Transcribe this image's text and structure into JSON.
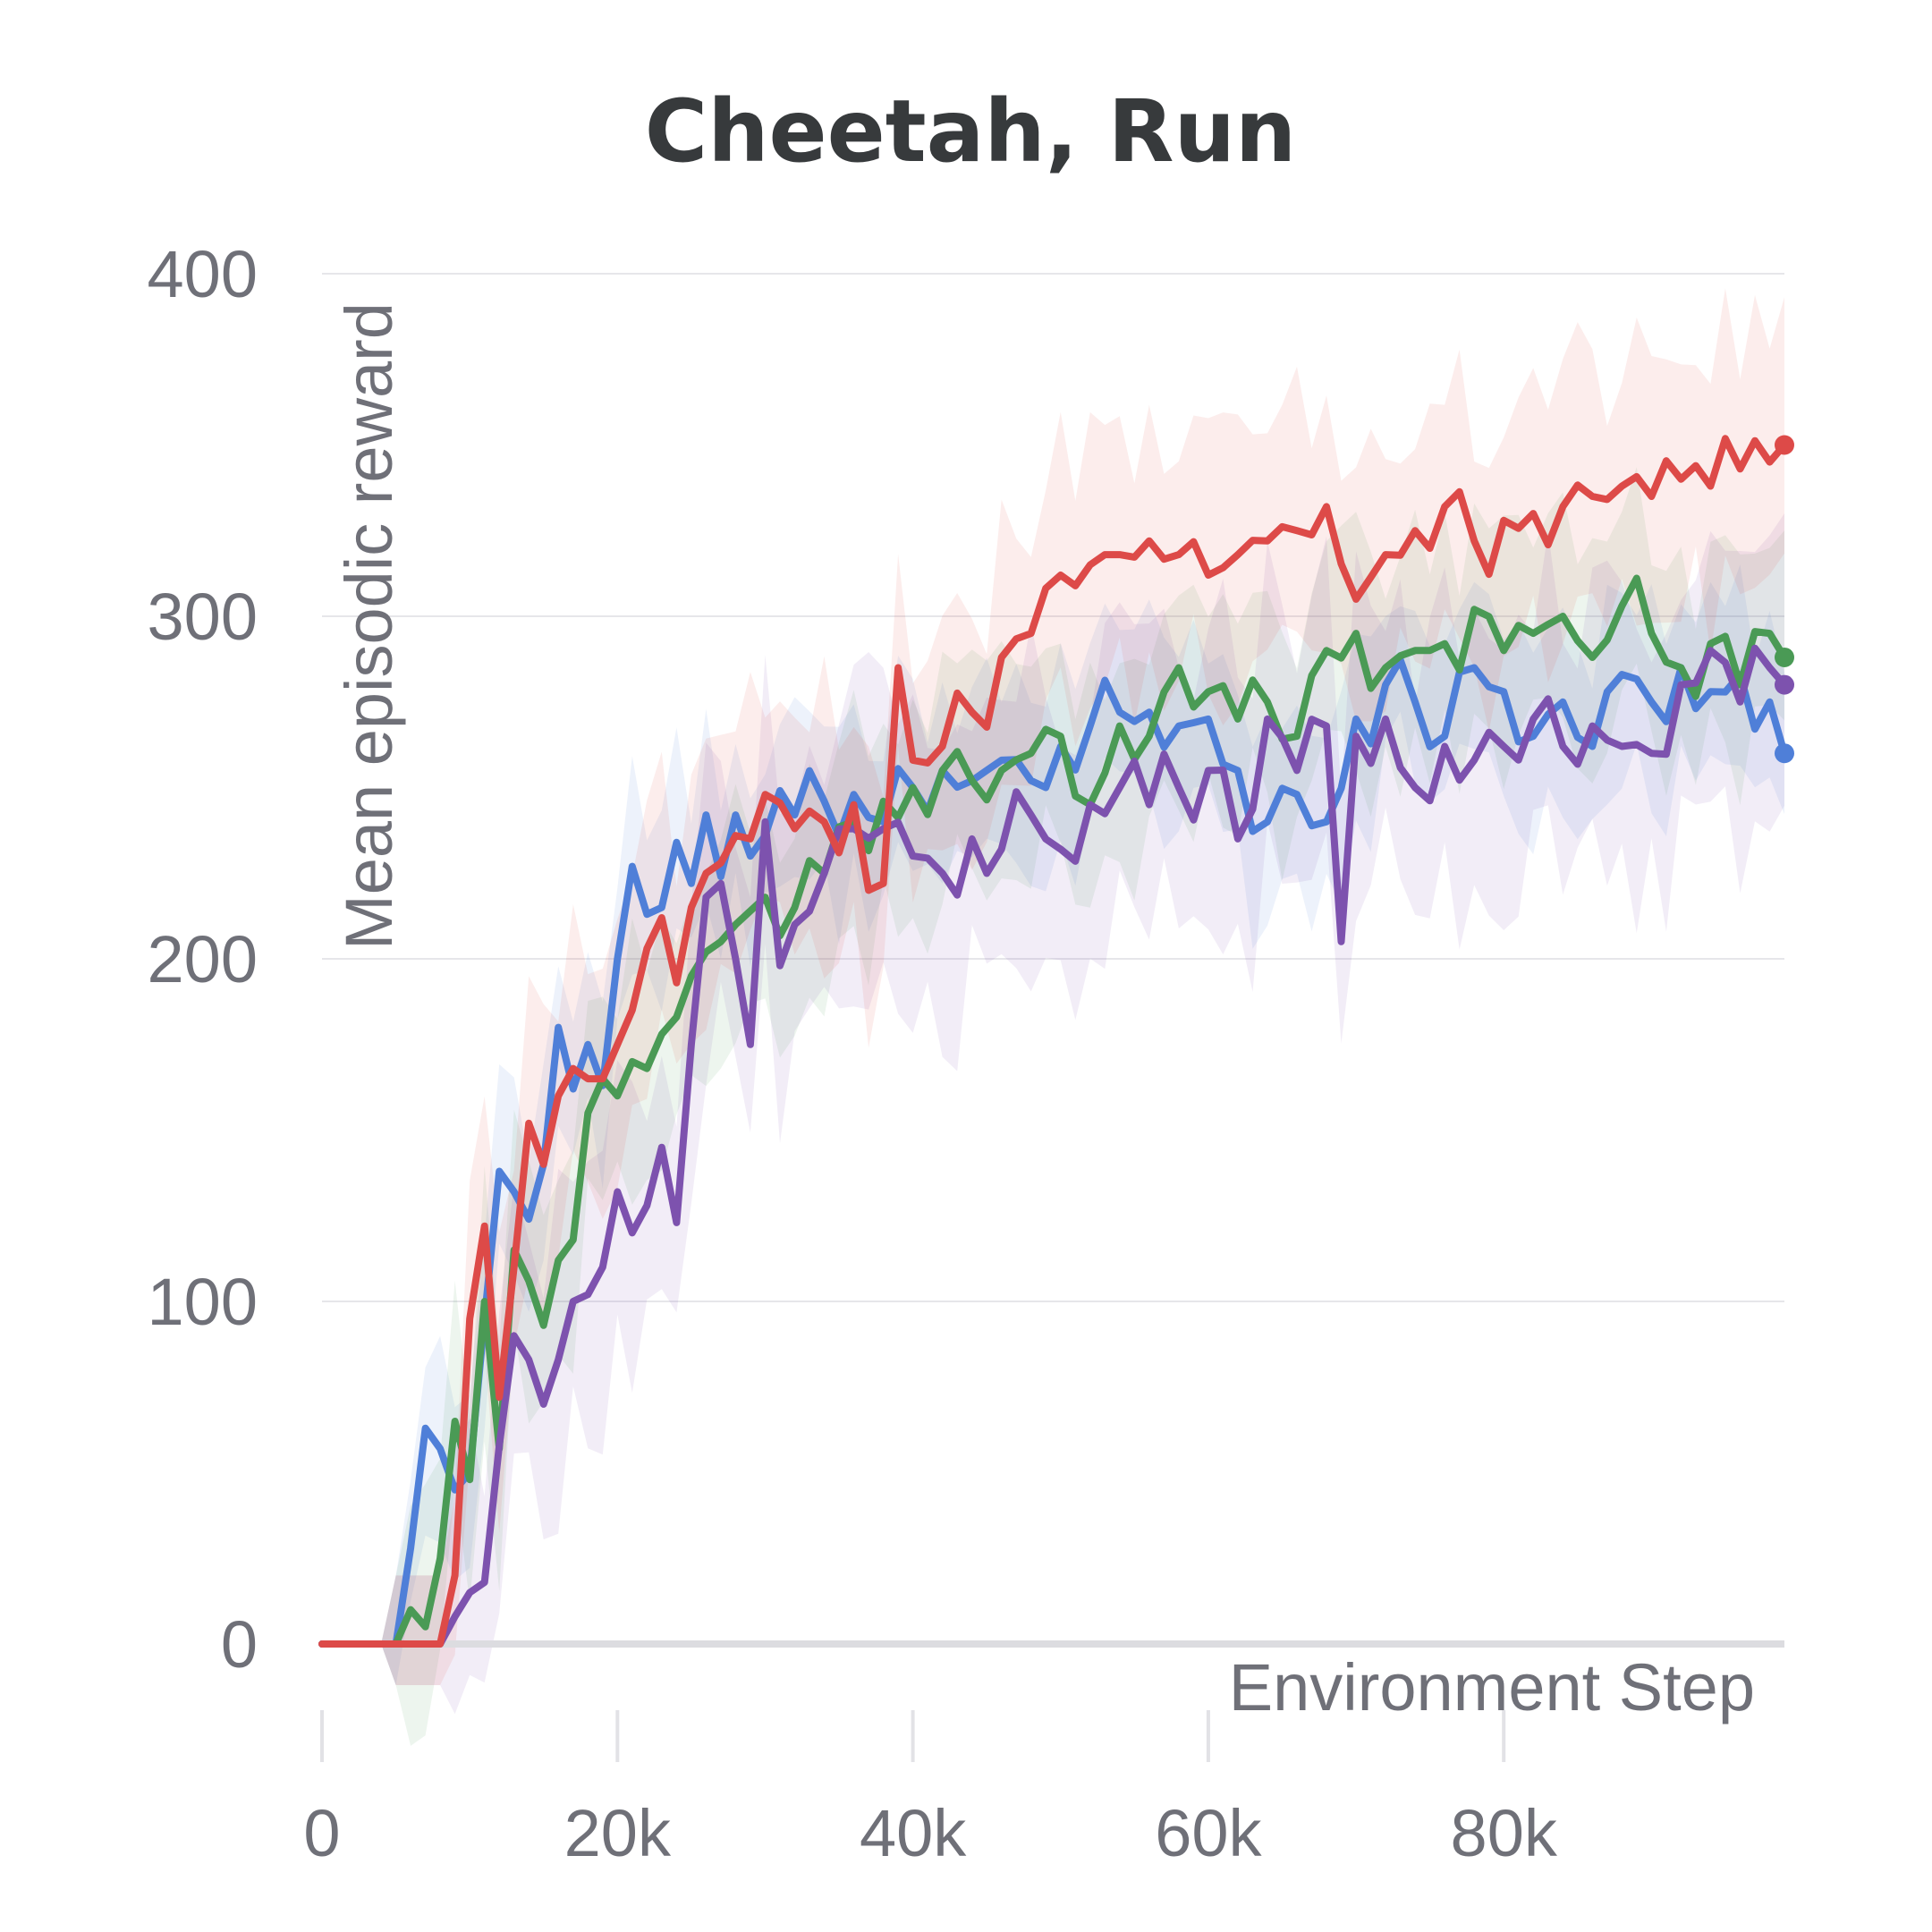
{
  "chart_data": {
    "type": "line",
    "title": "Cheetah, Run",
    "xlabel": "Environment Step",
    "ylabel": "Mean episodic reward",
    "xlim": [
      0,
      99000
    ],
    "ylim": [
      -35,
      420
    ],
    "xticks": [
      0,
      20000,
      40000,
      60000,
      80000
    ],
    "xtick_labels": [
      "0",
      "20k",
      "40k",
      "60k",
      "80k"
    ],
    "yticks": [
      0,
      100,
      200,
      300,
      400
    ],
    "ytick_labels": [
      "0",
      "100",
      "200",
      "300",
      "400"
    ],
    "grid": true,
    "legend": "none",
    "series": [
      {
        "name": "blue",
        "color": "#4f7fd8",
        "anchors": [
          [
            0,
            0
          ],
          [
            5000,
            0
          ],
          [
            6000,
            28
          ],
          [
            7000,
            63
          ],
          [
            8000,
            57
          ],
          [
            9000,
            45
          ],
          [
            10000,
            50
          ],
          [
            11000,
            95
          ],
          [
            12000,
            138
          ],
          [
            13000,
            132
          ],
          [
            14000,
            124
          ],
          [
            15000,
            140
          ],
          [
            16000,
            180
          ],
          [
            17000,
            162
          ],
          [
            18000,
            175
          ],
          [
            19000,
            163
          ],
          [
            20000,
            200
          ],
          [
            21000,
            227
          ],
          [
            22000,
            213
          ],
          [
            23000,
            215
          ],
          [
            24000,
            234
          ],
          [
            25000,
            222
          ],
          [
            26000,
            242
          ],
          [
            27000,
            224
          ],
          [
            28000,
            242
          ],
          [
            29000,
            230
          ],
          [
            30000,
            236
          ],
          [
            32000,
            242
          ],
          [
            34000,
            246
          ],
          [
            36000,
            248
          ],
          [
            38000,
            240
          ],
          [
            40000,
            250
          ],
          [
            42000,
            255
          ],
          [
            44000,
            252
          ],
          [
            46000,
            258
          ],
          [
            48000,
            252
          ],
          [
            50000,
            262
          ],
          [
            52000,
            268
          ],
          [
            54000,
            272
          ],
          [
            56000,
            272
          ],
          [
            58000,
            268
          ],
          [
            60000,
            270
          ],
          [
            62000,
            255
          ],
          [
            64000,
            240
          ],
          [
            66000,
            248
          ],
          [
            68000,
            240
          ],
          [
            70000,
            270
          ],
          [
            72000,
            280
          ],
          [
            74000,
            275
          ],
          [
            76000,
            265
          ],
          [
            78000,
            285
          ],
          [
            80000,
            278
          ],
          [
            82000,
            265
          ],
          [
            84000,
            275
          ],
          [
            86000,
            262
          ],
          [
            88000,
            283
          ],
          [
            90000,
            275
          ],
          [
            92000,
            285
          ],
          [
            94000,
            278
          ],
          [
            96000,
            283
          ],
          [
            98000,
            275
          ],
          [
            99000,
            260
          ]
        ],
        "band": 25
      },
      {
        "name": "green",
        "color": "#4a9a55",
        "anchors": [
          [
            0,
            0
          ],
          [
            5000,
            0
          ],
          [
            6000,
            10
          ],
          [
            7000,
            5
          ],
          [
            8000,
            25
          ],
          [
            9000,
            65
          ],
          [
            10000,
            48
          ],
          [
            11000,
            100
          ],
          [
            12000,
            57
          ],
          [
            13000,
            115
          ],
          [
            14000,
            106
          ],
          [
            15000,
            93
          ],
          [
            16000,
            112
          ],
          [
            17000,
            118
          ],
          [
            18000,
            155
          ],
          [
            19000,
            165
          ],
          [
            20000,
            160
          ],
          [
            21000,
            170
          ],
          [
            22000,
            168
          ],
          [
            23000,
            178
          ],
          [
            24000,
            183
          ],
          [
            25000,
            195
          ],
          [
            26000,
            202
          ],
          [
            27000,
            205
          ],
          [
            28000,
            210
          ],
          [
            30000,
            218
          ],
          [
            32000,
            215
          ],
          [
            34000,
            225
          ],
          [
            36000,
            240
          ],
          [
            38000,
            246
          ],
          [
            40000,
            250
          ],
          [
            42000,
            255
          ],
          [
            44000,
            252
          ],
          [
            46000,
            255
          ],
          [
            48000,
            260
          ],
          [
            50000,
            265
          ],
          [
            52000,
            245
          ],
          [
            54000,
            268
          ],
          [
            56000,
            265
          ],
          [
            58000,
            285
          ],
          [
            60000,
            278
          ],
          [
            62000,
            270
          ],
          [
            64000,
            275
          ],
          [
            66000,
            265
          ],
          [
            68000,
            290
          ],
          [
            70000,
            295
          ],
          [
            72000,
            285
          ],
          [
            74000,
            290
          ],
          [
            76000,
            292
          ],
          [
            78000,
            302
          ],
          [
            80000,
            290
          ],
          [
            82000,
            295
          ],
          [
            84000,
            300
          ],
          [
            86000,
            288
          ],
          [
            88000,
            303
          ],
          [
            90000,
            295
          ],
          [
            92000,
            285
          ],
          [
            94000,
            292
          ],
          [
            96000,
            280
          ],
          [
            98000,
            295
          ],
          [
            99000,
            288
          ]
        ],
        "band": 30
      },
      {
        "name": "purple",
        "color": "#7d52ae",
        "anchors": [
          [
            0,
            0
          ],
          [
            8000,
            0
          ],
          [
            9000,
            8
          ],
          [
            10000,
            15
          ],
          [
            11000,
            18
          ],
          [
            12000,
            58
          ],
          [
            13000,
            90
          ],
          [
            14000,
            83
          ],
          [
            15000,
            70
          ],
          [
            16000,
            83
          ],
          [
            17000,
            100
          ],
          [
            18000,
            102
          ],
          [
            19000,
            110
          ],
          [
            20000,
            132
          ],
          [
            21000,
            120
          ],
          [
            22000,
            128
          ],
          [
            23000,
            145
          ],
          [
            24000,
            123
          ],
          [
            25000,
            175
          ],
          [
            26000,
            218
          ],
          [
            27000,
            222
          ],
          [
            28000,
            200
          ],
          [
            29000,
            175
          ],
          [
            30000,
            240
          ],
          [
            31000,
            198
          ],
          [
            32000,
            210
          ],
          [
            34000,
            225
          ],
          [
            36000,
            238
          ],
          [
            38000,
            238
          ],
          [
            40000,
            230
          ],
          [
            42000,
            225
          ],
          [
            44000,
            235
          ],
          [
            46000,
            232
          ],
          [
            48000,
            242
          ],
          [
            50000,
            232
          ],
          [
            52000,
            245
          ],
          [
            54000,
            250
          ],
          [
            56000,
            245
          ],
          [
            58000,
            250
          ],
          [
            60000,
            255
          ],
          [
            62000,
            235
          ],
          [
            64000,
            270
          ],
          [
            66000,
            255
          ],
          [
            68000,
            268
          ],
          [
            69000,
            205
          ],
          [
            70000,
            265
          ],
          [
            72000,
            270
          ],
          [
            74000,
            250
          ],
          [
            76000,
            262
          ],
          [
            78000,
            258
          ],
          [
            80000,
            262
          ],
          [
            82000,
            270
          ],
          [
            84000,
            262
          ],
          [
            86000,
            268
          ],
          [
            88000,
            262
          ],
          [
            90000,
            260
          ],
          [
            92000,
            280
          ],
          [
            94000,
            290
          ],
          [
            96000,
            275
          ],
          [
            98000,
            285
          ],
          [
            99000,
            280
          ]
        ],
        "band": 40
      },
      {
        "name": "red",
        "color": "#dd4a48",
        "anchors": [
          [
            0,
            0
          ],
          [
            8000,
            0
          ],
          [
            9000,
            20
          ],
          [
            10000,
            95
          ],
          [
            11000,
            122
          ],
          [
            12000,
            72
          ],
          [
            13000,
            110
          ],
          [
            14000,
            152
          ],
          [
            15000,
            140
          ],
          [
            16000,
            160
          ],
          [
            17000,
            168
          ],
          [
            18000,
            165
          ],
          [
            19000,
            165
          ],
          [
            20000,
            175
          ],
          [
            21000,
            185
          ],
          [
            22000,
            203
          ],
          [
            23000,
            212
          ],
          [
            24000,
            193
          ],
          [
            25000,
            215
          ],
          [
            26000,
            225
          ],
          [
            27000,
            228
          ],
          [
            28000,
            236
          ],
          [
            29000,
            235
          ],
          [
            30000,
            248
          ],
          [
            32000,
            238
          ],
          [
            34000,
            240
          ],
          [
            36000,
            245
          ],
          [
            37000,
            220
          ],
          [
            38000,
            222
          ],
          [
            39000,
            285
          ],
          [
            40000,
            258
          ],
          [
            42000,
            262
          ],
          [
            44000,
            272
          ],
          [
            46000,
            288
          ],
          [
            48000,
            295
          ],
          [
            50000,
            312
          ],
          [
            52000,
            315
          ],
          [
            54000,
            318
          ],
          [
            56000,
            322
          ],
          [
            58000,
            318
          ],
          [
            60000,
            312
          ],
          [
            62000,
            318
          ],
          [
            64000,
            322
          ],
          [
            66000,
            325
          ],
          [
            68000,
            332
          ],
          [
            70000,
            305
          ],
          [
            72000,
            318
          ],
          [
            74000,
            325
          ],
          [
            76000,
            332
          ],
          [
            78000,
            322
          ],
          [
            80000,
            328
          ],
          [
            82000,
            330
          ],
          [
            84000,
            332
          ],
          [
            86000,
            335
          ],
          [
            88000,
            338
          ],
          [
            90000,
            335
          ],
          [
            92000,
            340
          ],
          [
            94000,
            338
          ],
          [
            96000,
            343
          ],
          [
            98000,
            345
          ],
          [
            99000,
            350
          ]
        ],
        "band": 35
      }
    ]
  }
}
